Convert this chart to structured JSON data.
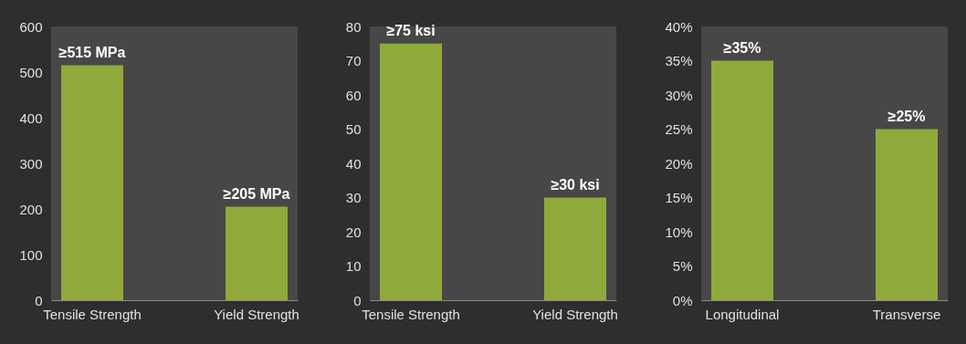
{
  "chart_data": [
    {
      "type": "bar",
      "categories": [
        "Tensile Strength",
        "Yield Strength"
      ],
      "values": [
        515,
        205
      ],
      "value_labels": [
        "≥515 MPa",
        "≥205 MPa"
      ],
      "color": "#8faa3b",
      "ylim": [
        0,
        600
      ],
      "yticks": [
        0,
        100,
        200,
        300,
        400,
        500,
        600
      ],
      "grid": false
    },
    {
      "type": "bar",
      "categories": [
        "Tensile Strength",
        "Yield Strength"
      ],
      "values": [
        75,
        30
      ],
      "value_labels": [
        "≥75 ksi",
        "≥30 ksi"
      ],
      "color": "#8faa3b",
      "ylim": [
        0,
        80
      ],
      "yticks": [
        0,
        10,
        20,
        30,
        40,
        50,
        60,
        70,
        80
      ],
      "grid": false
    },
    {
      "type": "bar",
      "categories": [
        "Longitudinal",
        "Transverse"
      ],
      "values": [
        35,
        25
      ],
      "value_labels": [
        "≥35%",
        "≥25%"
      ],
      "color": "#8faa3b",
      "ylim": [
        0,
        40
      ],
      "yticks": [
        {
          "value": 0,
          "label": "0%"
        },
        {
          "value": 5,
          "label": "5%"
        },
        {
          "value": 10,
          "label": "10%"
        },
        {
          "value": 15,
          "label": "15%"
        },
        {
          "value": 20,
          "label": "20%"
        },
        {
          "value": 25,
          "label": "25%"
        },
        {
          "value": 30,
          "label": "30%"
        },
        {
          "value": 35,
          "label": "35%"
        },
        {
          "value": 40,
          "label": "40%"
        }
      ],
      "grid": false
    }
  ]
}
